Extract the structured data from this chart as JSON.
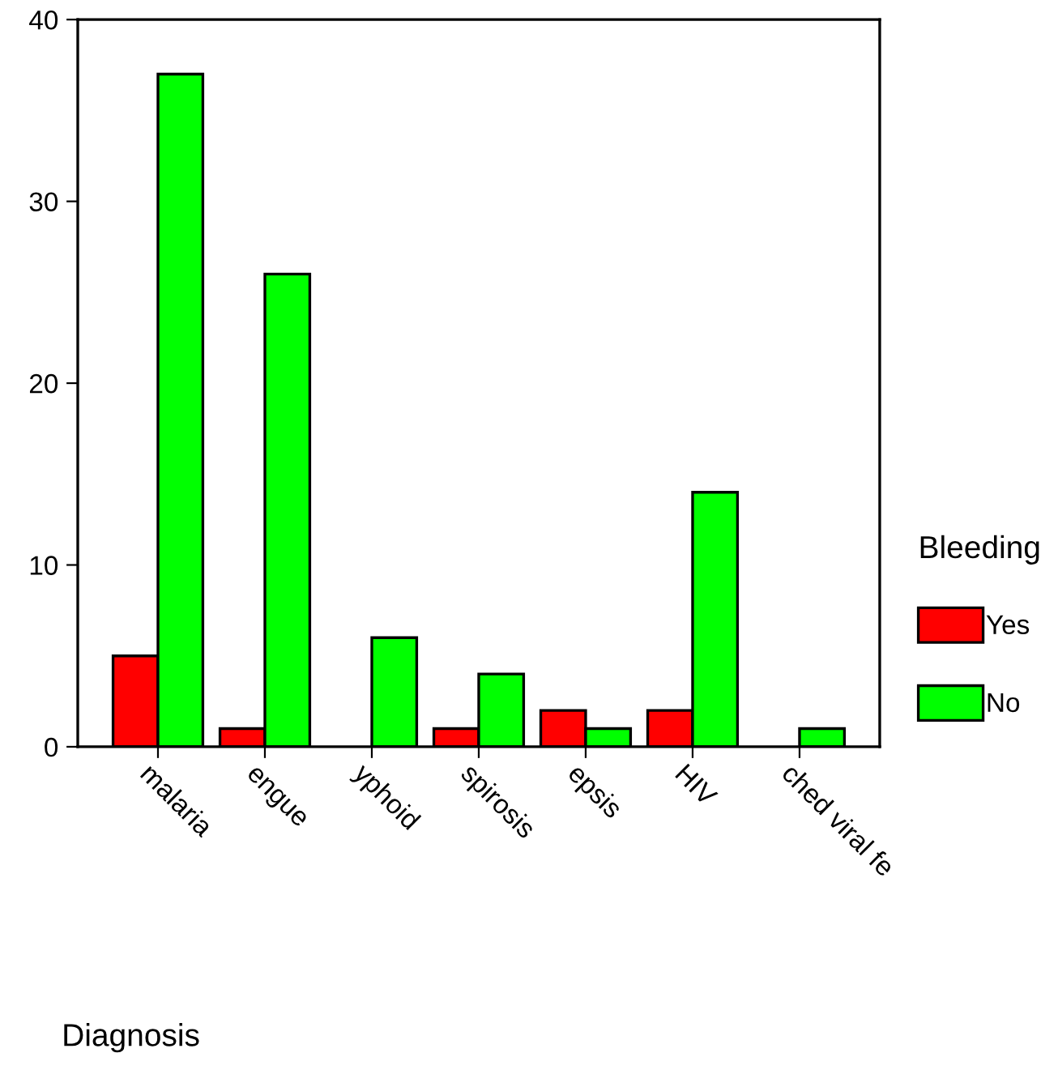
{
  "chart_data": {
    "type": "bar",
    "xlabel": "Diagnosis",
    "legend_title": "Bleeding",
    "legend": "right",
    "categories": [
      "malaria",
      "engue",
      "yphoid",
      "spirosis",
      "epsis",
      "HIV",
      "ched viral fe"
    ],
    "series": [
      {
        "name": "Yes",
        "color": "#ff0000",
        "values": [
          5,
          1,
          0,
          1,
          2,
          2,
          0
        ]
      },
      {
        "name": "No",
        "color": "#00ff00",
        "values": [
          37,
          26,
          6,
          4,
          1,
          14,
          1
        ]
      }
    ],
    "ylim": [
      0,
      40
    ],
    "yticks": [
      0,
      10,
      20,
      30,
      40
    ],
    "grid": false
  }
}
